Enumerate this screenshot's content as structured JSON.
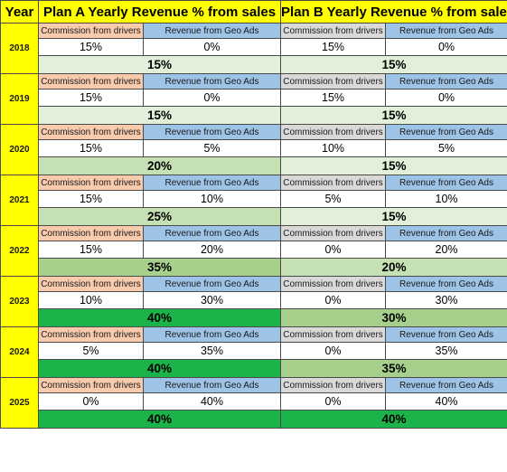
{
  "header": {
    "year": "Year",
    "plan_a": "Plan A Yearly Revenue % from sales",
    "plan_b": "Plan B Yearly Revenue % from sales"
  },
  "labels": {
    "commission": "Commission from drivers",
    "geo_ads": "Revenue from Geo Ads"
  },
  "colors": {
    "header_bg": "#ffff00",
    "commission_plan_a_bg": "#f7cbac",
    "commission_plan_b_bg": "#d9d9d9",
    "geo_ads_bg": "#9dc3e6",
    "total_15": "#e2efd9",
    "total_20": "#c5e0b3",
    "total_25": "#c5e0b3",
    "total_30": "#a8d08d",
    "total_35": "#a8d08d",
    "total_40": "#1db34b"
  },
  "rows": [
    {
      "year": "2018",
      "a_commission": "15%",
      "a_geo": "0%",
      "a_total": "15%",
      "b_commission": "15%",
      "b_geo": "0%",
      "b_total": "15%"
    },
    {
      "year": "2019",
      "a_commission": "15%",
      "a_geo": "0%",
      "a_total": "15%",
      "b_commission": "15%",
      "b_geo": "0%",
      "b_total": "15%"
    },
    {
      "year": "2020",
      "a_commission": "15%",
      "a_geo": "5%",
      "a_total": "20%",
      "b_commission": "10%",
      "b_geo": "5%",
      "b_total": "15%"
    },
    {
      "year": "2021",
      "a_commission": "15%",
      "a_geo": "10%",
      "a_total": "25%",
      "b_commission": "5%",
      "b_geo": "10%",
      "b_total": "15%"
    },
    {
      "year": "2022",
      "a_commission": "15%",
      "a_geo": "20%",
      "a_total": "35%",
      "b_commission": "0%",
      "b_geo": "20%",
      "b_total": "20%"
    },
    {
      "year": "2023",
      "a_commission": "10%",
      "a_geo": "30%",
      "a_total": "40%",
      "b_commission": "0%",
      "b_geo": "30%",
      "b_total": "30%"
    },
    {
      "year": "2024",
      "a_commission": "5%",
      "a_geo": "35%",
      "a_total": "40%",
      "b_commission": "0%",
      "b_geo": "35%",
      "b_total": "35%"
    },
    {
      "year": "2025",
      "a_commission": "0%",
      "a_geo": "40%",
      "a_total": "40%",
      "b_commission": "0%",
      "b_geo": "40%",
      "b_total": "40%"
    }
  ]
}
